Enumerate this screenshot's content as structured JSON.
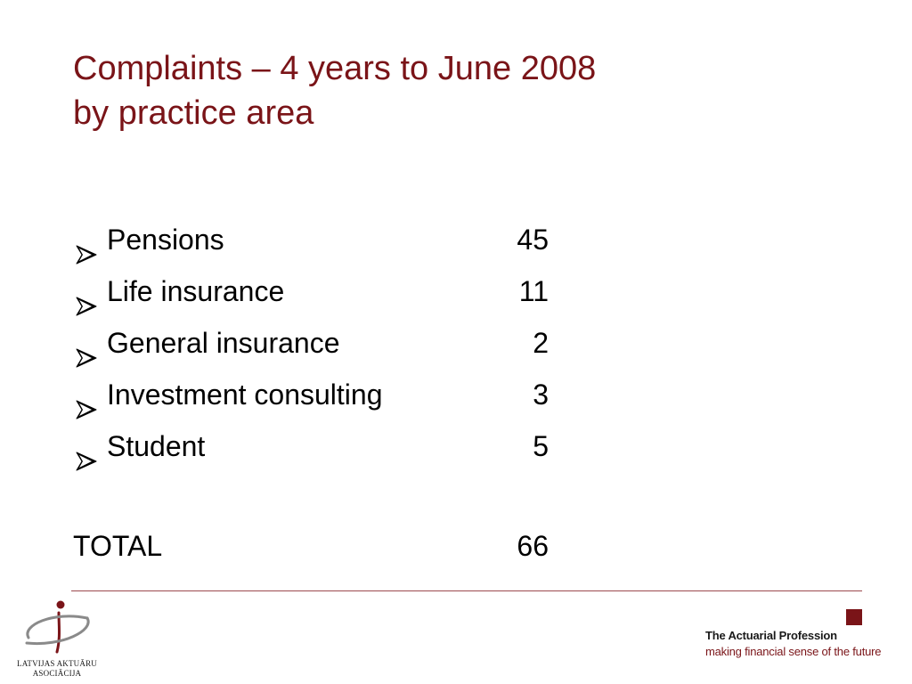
{
  "title": {
    "line1": "Complaints – 4 years to June 2008",
    "line2": "by practice area"
  },
  "items": [
    {
      "label": "Pensions",
      "value": "45"
    },
    {
      "label": "Life insurance",
      "value": "11"
    },
    {
      "label": "General insurance",
      "value": "2"
    },
    {
      "label": "Investment consulting",
      "value": "3"
    },
    {
      "label": "Student",
      "value": "5"
    }
  ],
  "total": {
    "label": "TOTAL",
    "value": "66"
  },
  "footer": {
    "left_logo": {
      "line1": "LATVIJAS AKTUĀRU",
      "line2": "ASOCIĀCIJA",
      "icon": "lna-logo-icon"
    },
    "right_logo": {
      "name": "The Actuarial Profession",
      "tagline": "making financial sense of the future",
      "icon": "square-icon"
    }
  },
  "colors": {
    "title": "#7a1418",
    "accent": "#7a1418",
    "divider": "#9b4a4e",
    "text": "#000000"
  }
}
